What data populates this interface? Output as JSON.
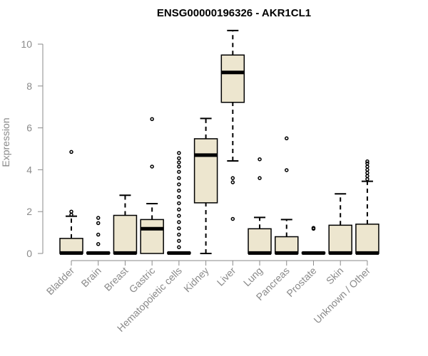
{
  "chart_data": {
    "type": "box",
    "title": "ENSG00000196326 - AKR1CL1",
    "xlabel": "",
    "ylabel": "Expression",
    "ylim": [
      0,
      10.6
    ],
    "yticks": [
      0,
      2,
      4,
      6,
      8,
      10
    ],
    "colors": {
      "box_fill": "#ede6cf",
      "box_stroke": "#000000",
      "axis": "#8a8a8a"
    },
    "grid": false,
    "categories": [
      "Bladder",
      "Brain",
      "Breast",
      "Gastric",
      "Hematopoietic cells",
      "Kidney",
      "Liver",
      "Lung",
      "Pancreas",
      "Prostate",
      "Skin",
      "Unknown / Other"
    ],
    "boxes": [
      {
        "category": "Bladder",
        "min": 0,
        "q1": 0,
        "median": 0.02,
        "q3": 0.72,
        "max": 1.78,
        "outliers": [
          1.85,
          2.0,
          4.85
        ]
      },
      {
        "category": "Brain",
        "min": 0,
        "q1": 0,
        "median": 0.02,
        "q3": 0.05,
        "max": 0.05,
        "outliers": [
          0.45,
          0.9,
          1.45,
          1.7
        ]
      },
      {
        "category": "Breast",
        "min": 0,
        "q1": 0,
        "median": 0.02,
        "q3": 1.82,
        "max": 2.78,
        "outliers": []
      },
      {
        "category": "Gastric",
        "min": 0,
        "q1": 0,
        "median": 1.18,
        "q3": 1.62,
        "max": 2.38,
        "outliers": [
          4.15,
          6.42
        ]
      },
      {
        "category": "Hematopoietic cells",
        "min": 0,
        "q1": 0,
        "median": 0.02,
        "q3": 0.05,
        "max": 0.05,
        "outliers": [
          0.3,
          0.6,
          0.9,
          1.2,
          1.5,
          1.8,
          2.1,
          2.4,
          2.7,
          3.0,
          3.3,
          3.6,
          3.9,
          4.15,
          4.35,
          4.55,
          4.8
        ]
      },
      {
        "category": "Kidney",
        "min": 0,
        "q1": 2.42,
        "median": 4.7,
        "q3": 5.48,
        "max": 6.45,
        "outliers": []
      },
      {
        "category": "Liver",
        "min": 4.42,
        "q1": 7.22,
        "median": 8.65,
        "q3": 9.48,
        "max": 10.65,
        "outliers": [
          1.65,
          3.4,
          3.6
        ]
      },
      {
        "category": "Lung",
        "min": 0,
        "q1": 0,
        "median": 0.02,
        "q3": 1.18,
        "max": 1.72,
        "outliers": [
          3.6,
          4.5
        ]
      },
      {
        "category": "Pancreas",
        "min": 0,
        "q1": 0,
        "median": 0.02,
        "q3": 0.8,
        "max": 1.62,
        "outliers": [
          3.98,
          5.5
        ]
      },
      {
        "category": "Prostate",
        "min": 0,
        "q1": 0,
        "median": 0.02,
        "q3": 0.05,
        "max": 0.05,
        "outliers": [
          1.18,
          1.22
        ]
      },
      {
        "category": "Skin",
        "min": 0,
        "q1": 0,
        "median": 0.02,
        "q3": 1.35,
        "max": 2.85,
        "outliers": []
      },
      {
        "category": "Unknown / Other",
        "min": 0,
        "q1": 0,
        "median": 0.02,
        "q3": 1.4,
        "max": 3.45,
        "outliers": [
          3.55,
          3.7,
          3.85,
          4.0,
          4.15,
          4.3,
          4.4
        ]
      }
    ]
  }
}
